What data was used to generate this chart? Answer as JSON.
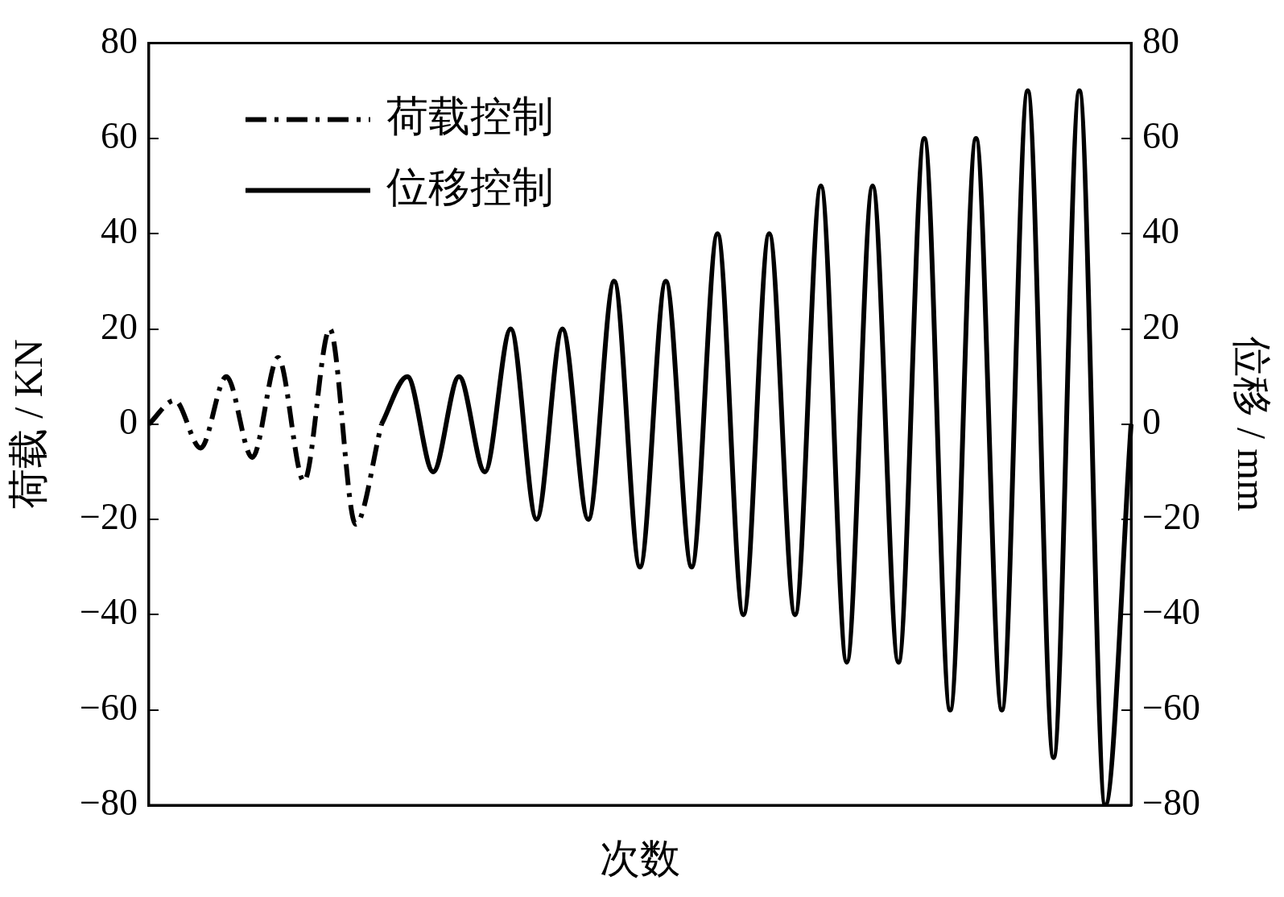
{
  "chart_data": {
    "type": "line",
    "xlabel": "次数",
    "ylabel": "荷载 / KN",
    "y2label": "位移 / mm",
    "categories": [
      null,
      null,
      null,
      null,
      null,
      null,
      null,
      null,
      null,
      null,
      null,
      null,
      null,
      null,
      null,
      null,
      null,
      null,
      null,
      null,
      null,
      null,
      null,
      null,
      null,
      null,
      null,
      null,
      null,
      null,
      null,
      null,
      null,
      null,
      null,
      null,
      null,
      null,
      null
    ],
    "series": [
      {
        "name": "荷载控制",
        "color": "#000000",
        "line_style": "dashed",
        "values": [
          0,
          5,
          -5,
          10,
          -7,
          14,
          -12,
          20,
          -21,
          0,
          null,
          null,
          null,
          null,
          null,
          null,
          null,
          null,
          null,
          null,
          null,
          null,
          null,
          null,
          null,
          null,
          null,
          null,
          null,
          null,
          null,
          null,
          null,
          null,
          null,
          null,
          null,
          null,
          null
        ]
      },
      {
        "name": "位移控制",
        "color": "#000000",
        "line_style": "solid",
        "values": [
          null,
          null,
          null,
          null,
          null,
          null,
          null,
          null,
          null,
          0,
          10,
          -10,
          10,
          -10,
          20,
          -20,
          20,
          -20,
          30,
          -30,
          30,
          -30,
          40,
          -40,
          40,
          -40,
          50,
          -50,
          50,
          -50,
          60,
          -60,
          60,
          -60,
          70,
          -70,
          70,
          -80,
          0
        ]
      }
    ],
    "ylim": [
      -80,
      80
    ],
    "yticks": [
      -80,
      -60,
      -40,
      -20,
      0,
      20,
      40,
      60,
      80
    ],
    "y2lim": [
      -80,
      80
    ],
    "y2ticks": [
      -80,
      -60,
      -40,
      -20,
      0,
      20,
      40,
      60,
      80
    ],
    "legend": "top left",
    "grid": false,
    "marker": "none",
    "tick_labels": "y"
  }
}
